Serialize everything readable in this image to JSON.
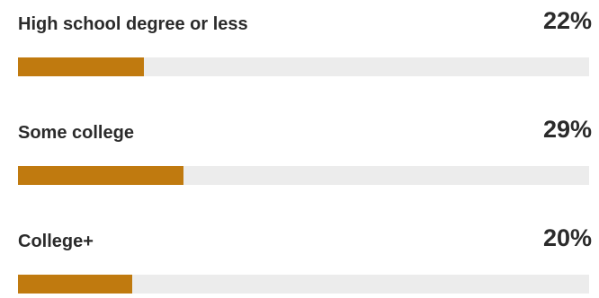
{
  "chart_data": {
    "type": "bar",
    "orientation": "horizontal",
    "categories": [
      "High school degree or less",
      "Some college",
      "College+"
    ],
    "values": [
      22,
      29,
      20
    ],
    "value_labels": [
      "22%",
      "29%",
      "20%"
    ],
    "unit": "%",
    "xlim": [
      0,
      100
    ],
    "colors": {
      "bar": "#c07a0f",
      "track": "#ececec",
      "text": "#2b2b2b"
    }
  }
}
